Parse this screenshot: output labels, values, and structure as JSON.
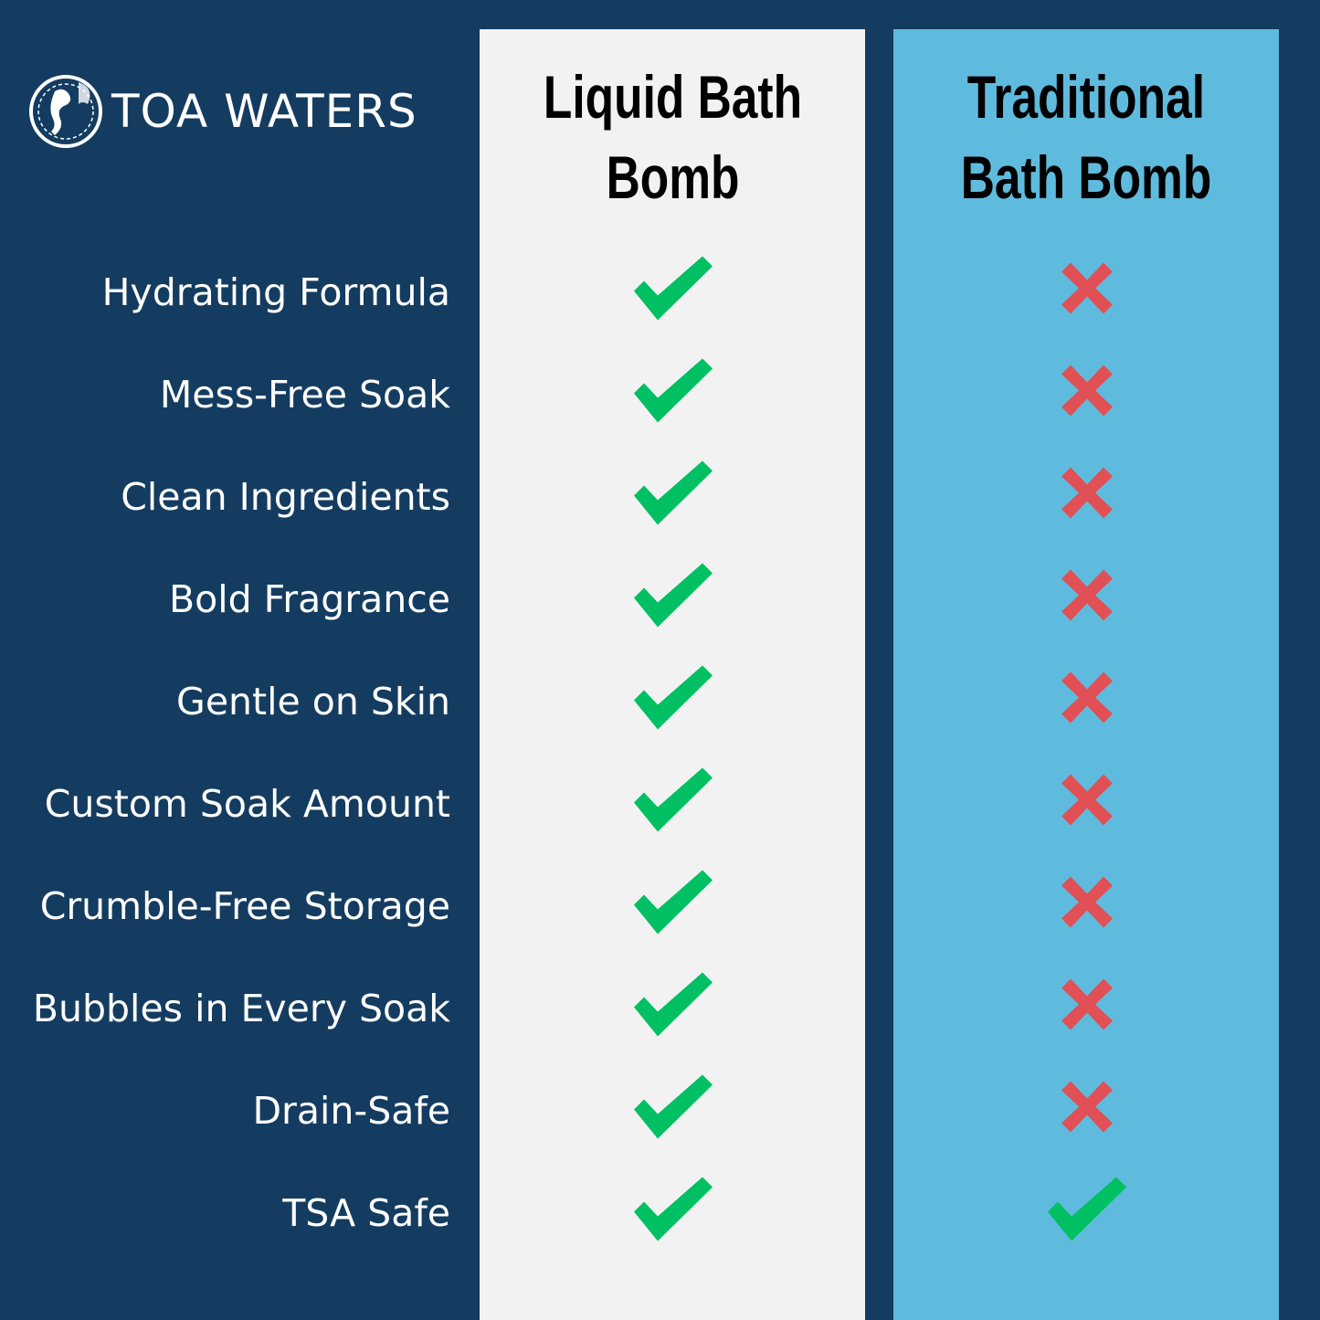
{
  "brand": {
    "name": "TOA WATERS",
    "logo_icon": "sea-horse-emblem"
  },
  "columns": [
    {
      "title": "Liquid Bath Bomb",
      "lines": [
        "Liquid Bath",
        "Bomb"
      ],
      "background": "#f2f2f2"
    },
    {
      "title": "Traditional Bath Bomb",
      "lines": [
        "Traditional",
        "Bath Bomb"
      ],
      "background": "#5fbbdd"
    }
  ],
  "colors": {
    "background": "#143c60",
    "check": "#00c063",
    "cross": "#e05055"
  },
  "rows": [
    {
      "feature": "Hydrating Formula",
      "liquid": "check",
      "traditional": "cross"
    },
    {
      "feature": "Mess-Free Soak",
      "liquid": "check",
      "traditional": "cross"
    },
    {
      "feature": "Clean Ingredients",
      "liquid": "check",
      "traditional": "cross"
    },
    {
      "feature": "Bold Fragrance",
      "liquid": "check",
      "traditional": "cross"
    },
    {
      "feature": "Gentle on Skin",
      "liquid": "check",
      "traditional": "cross"
    },
    {
      "feature": "Custom Soak Amount",
      "liquid": "check",
      "traditional": "cross"
    },
    {
      "feature": "Crumble-Free Storage",
      "liquid": "check",
      "traditional": "cross"
    },
    {
      "feature": "Bubbles in Every Soak",
      "liquid": "check",
      "traditional": "cross"
    },
    {
      "feature": "Drain-Safe",
      "liquid": "check",
      "traditional": "cross"
    },
    {
      "feature": "TSA Safe",
      "liquid": "check",
      "traditional": "check"
    }
  ]
}
